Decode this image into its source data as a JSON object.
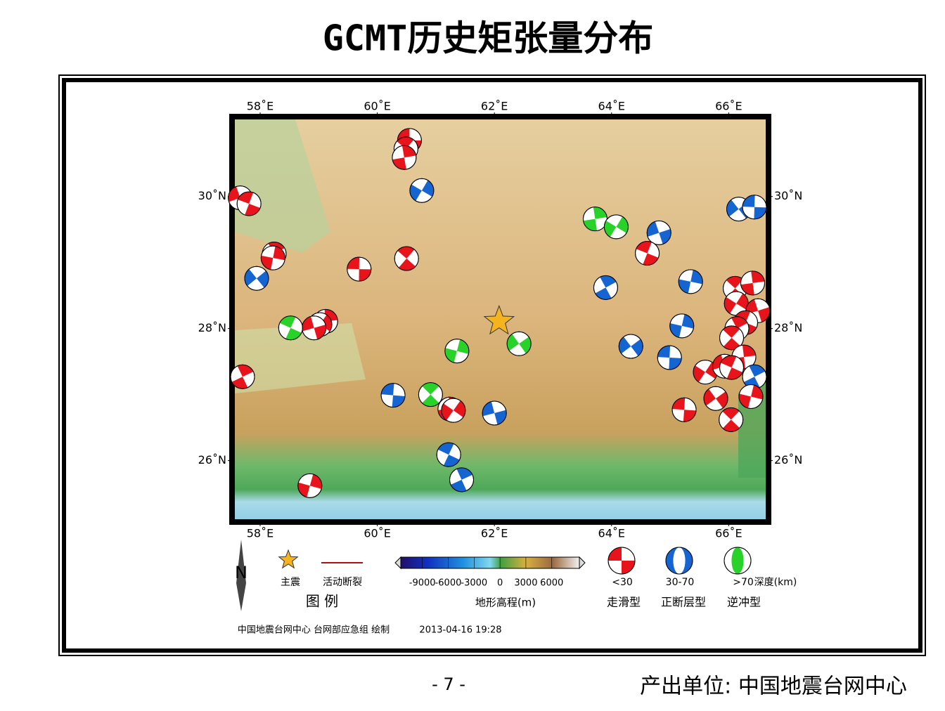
{
  "title": "GCMT历史矩张量分布",
  "map": {
    "xlim": [
      57.52,
      66.68
    ],
    "ylim": [
      25.07,
      31.21
    ],
    "xticks": [
      {
        "value": 58,
        "label": "58˚E"
      },
      {
        "value": 60,
        "label": "60˚E"
      },
      {
        "value": 62,
        "label": "62˚E"
      },
      {
        "value": 64,
        "label": "64˚E"
      },
      {
        "value": 66,
        "label": "66˚E"
      }
    ],
    "yticks": [
      {
        "value": 26,
        "label": "26˚N"
      },
      {
        "value": 28,
        "label": "28˚N"
      },
      {
        "value": 30,
        "label": "30˚N"
      }
    ],
    "mainshock": {
      "lon": 62.08,
      "lat": 28.11,
      "color": "#f5b41e"
    },
    "fault_color": "#b01010",
    "events": {
      "lon": [
        60.55,
        60.49,
        60.46,
        60.76,
        57.66,
        57.81,
        58.24,
        58.22,
        57.94,
        59.69,
        60.5,
        63.72,
        64.08,
        64.81,
        64.61,
        63.9,
        65.35,
        66.17,
        66.44,
        66.11,
        66.41,
        66.13,
        66.5,
        66.29,
        66.14,
        65.2,
        64.33,
        64.99,
        66.05,
        66.26,
        65.6,
        65.93,
        66.05,
        66.44,
        66.38,
        65.78,
        65.24,
        66.04,
        59.12,
        59.02,
        58.92,
        58.52,
        57.7,
        61.36,
        62.42,
        60.27,
        60.91,
        61.24,
        61.3,
        62.0,
        61.22,
        61.44,
        58.85
      ],
      "lat": [
        30.85,
        30.72,
        30.59,
        30.09,
        29.98,
        29.89,
        29.13,
        29.07,
        28.76,
        28.9,
        29.06,
        29.66,
        29.54,
        29.45,
        29.14,
        28.62,
        28.71,
        29.81,
        29.84,
        28.61,
        28.69,
        28.38,
        28.27,
        28.09,
        28.0,
        28.04,
        27.73,
        27.56,
        27.86,
        27.57,
        27.34,
        27.43,
        27.41,
        27.27,
        26.97,
        26.94,
        26.77,
        26.62,
        28.11,
        28.06,
        28.01,
        28.01,
        27.27,
        27.66,
        27.77,
        26.99,
        27.0,
        26.78,
        26.76,
        26.72,
        26.09,
        25.71,
        25.62
      ],
      "class": [
        0,
        0,
        0,
        1,
        0,
        0,
        0,
        0,
        1,
        0,
        0,
        2,
        2,
        1,
        0,
        1,
        1,
        1,
        1,
        0,
        0,
        0,
        0,
        0,
        0,
        1,
        1,
        1,
        0,
        0,
        0,
        0,
        0,
        1,
        0,
        0,
        0,
        0,
        0,
        0,
        0,
        2,
        0,
        2,
        2,
        1,
        2,
        0,
        0,
        1,
        1,
        1,
        0
      ]
    }
  },
  "legend": {
    "title": "图 例",
    "north": "N",
    "mainshock": "主震",
    "fault": "活动断裂",
    "colorbar": {
      "lim": [
        -11500,
        9200
      ],
      "ticks": [
        -9000,
        -6000,
        -3000,
        0,
        3000,
        6000
      ],
      "label": "地形高程(m)"
    },
    "classes": [
      {
        "depth": "<30",
        "mechanism": "走滑型",
        "color": "#e8141b"
      },
      {
        "depth": "30-70",
        "mechanism": "正断层型",
        "color": "#1464d2"
      },
      {
        "depth": ">70",
        "mechanism": "逆冲型",
        "color": "#28d228"
      }
    ],
    "depth_unit": "深度(km)"
  },
  "credit": "中国地震台网中心 台网部应急组 绘制",
  "timestamp": "2013-04-16 19:28",
  "page": "- 7 -",
  "producer": "产出单位: 中国地震台网中心"
}
